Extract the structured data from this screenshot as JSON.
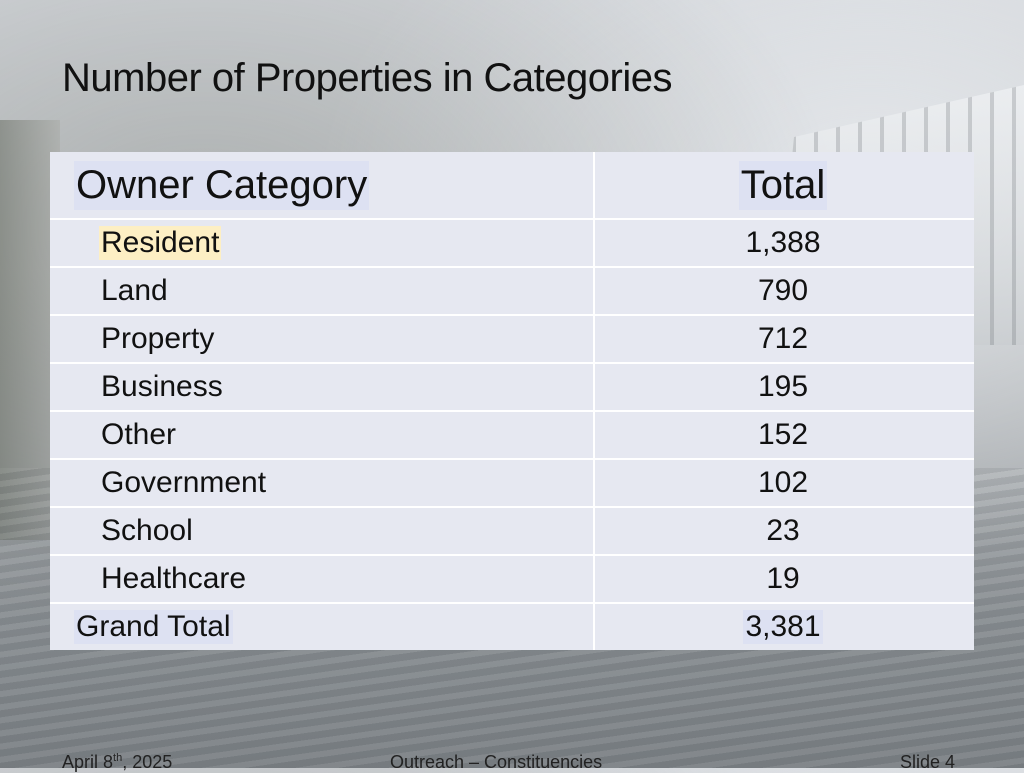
{
  "slide": {
    "title": "Number of Properties in Categories"
  },
  "table": {
    "headers": {
      "category": "Owner Category",
      "total": "Total"
    },
    "rows": [
      {
        "category": "Resident",
        "total": "1,388"
      },
      {
        "category": "Land",
        "total": "790"
      },
      {
        "category": "Property",
        "total": "712"
      },
      {
        "category": "Business",
        "total": "195"
      },
      {
        "category": "Other",
        "total": "152"
      },
      {
        "category": "Government",
        "total": "102"
      },
      {
        "category": "School",
        "total": "23"
      },
      {
        "category": "Healthcare",
        "total": "19"
      }
    ],
    "grand_total": {
      "label": "Grand Total",
      "total": "3,381"
    }
  },
  "footer": {
    "date_prefix": "April 8",
    "date_suffix": "th",
    "date_year": ", 2025",
    "center": "Outreach – Constituencies",
    "slide_number": "Slide 4"
  },
  "colors": {
    "table_bg": "#e6e8f1",
    "highlight_yellow": "#fdefc4",
    "highlight_blue": "#dde1f2"
  }
}
